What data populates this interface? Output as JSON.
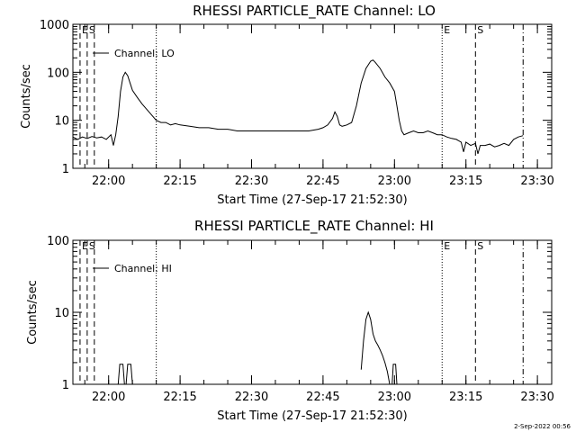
{
  "footer_date": "2-Sep-2022 00:56",
  "chart_data": [
    {
      "type": "line",
      "title": "RHESSI PARTICLE_RATE Channel: LO",
      "xlabel": "Start Time (27-Sep-17 21:52:30)",
      "ylabel": "Counts/sec",
      "yscale": "log",
      "ylim": [
        1,
        1000
      ],
      "xlim": [
        "21:52:30",
        "23:33:00"
      ],
      "x_ticks": [
        "22:00",
        "22:15",
        "22:30",
        "22:45",
        "23:00",
        "23:15",
        "23:30"
      ],
      "y_ticks": [
        "1",
        "10",
        "100",
        "1000"
      ],
      "legend": "Channel: LO",
      "markers": [
        {
          "label": "E",
          "time": "21:54:00",
          "style": "dashed"
        },
        {
          "label": "S",
          "time": "21:55:30",
          "style": "dashed"
        },
        {
          "label": "",
          "time": "21:57:00",
          "style": "dashed"
        },
        {
          "label": "",
          "time": "22:10:00",
          "style": "dotted"
        },
        {
          "label": "E",
          "time": "23:10:00",
          "style": "dotted"
        },
        {
          "label": "S",
          "time": "23:17:00",
          "style": "dashed"
        },
        {
          "label": "",
          "time": "23:27:00",
          "style": "dashdot"
        }
      ],
      "series": [
        {
          "points": [
            [
              "21:52:30",
              4.5
            ],
            [
              "21:53:30",
              4
            ],
            [
              "21:54:30",
              4.5
            ],
            [
              "21:55:30",
              4.2
            ],
            [
              "21:56:30",
              4.6
            ],
            [
              "21:57:30",
              4.3
            ],
            [
              "21:58:30",
              4.5
            ],
            [
              "21:59:30",
              4
            ],
            [
              "22:00:30",
              5
            ],
            [
              "22:01:00",
              3
            ],
            [
              "22:01:30",
              5
            ],
            [
              "22:02:00",
              12
            ],
            [
              "22:02:30",
              40
            ],
            [
              "22:03:00",
              80
            ],
            [
              "22:03:30",
              100
            ],
            [
              "22:04:00",
              85
            ],
            [
              "22:04:30",
              60
            ],
            [
              "22:05:00",
              42
            ],
            [
              "22:06:00",
              30
            ],
            [
              "22:07:00",
              22
            ],
            [
              "22:08:00",
              17
            ],
            [
              "22:09:00",
              13
            ],
            [
              "22:10:00",
              10
            ],
            [
              "22:11:00",
              9
            ],
            [
              "22:12:00",
              9
            ],
            [
              "22:13:00",
              8
            ],
            [
              "22:14:00",
              8.5
            ],
            [
              "22:15:00",
              8
            ],
            [
              "22:17:00",
              7.5
            ],
            [
              "22:19:00",
              7
            ],
            [
              "22:21:00",
              7
            ],
            [
              "22:23:00",
              6.5
            ],
            [
              "22:25:00",
              6.5
            ],
            [
              "22:27:00",
              6
            ],
            [
              "22:30:00",
              6
            ],
            [
              "22:33:00",
              6
            ],
            [
              "22:36:00",
              6
            ],
            [
              "22:39:00",
              6
            ],
            [
              "22:42:00",
              6
            ],
            [
              "22:44:00",
              6.5
            ],
            [
              "22:45:00",
              7
            ],
            [
              "22:46:00",
              8
            ],
            [
              "22:47:00",
              11
            ],
            [
              "22:47:30",
              15
            ],
            [
              "22:48:00",
              12
            ],
            [
              "22:48:30",
              8
            ],
            [
              "22:49:00",
              7.5
            ],
            [
              "22:50:00",
              8
            ],
            [
              "22:51:00",
              9
            ],
            [
              "22:52:00",
              20
            ],
            [
              "22:53:00",
              60
            ],
            [
              "22:54:00",
              120
            ],
            [
              "22:55:00",
              170
            ],
            [
              "22:55:30",
              180
            ],
            [
              "22:56:00",
              160
            ],
            [
              "22:57:00",
              120
            ],
            [
              "22:58:00",
              80
            ],
            [
              "22:59:00",
              60
            ],
            [
              "23:00:00",
              40
            ],
            [
              "23:00:30",
              20
            ],
            [
              "23:01:00",
              10
            ],
            [
              "23:01:30",
              6
            ],
            [
              "23:02:00",
              5
            ],
            [
              "23:03:00",
              5.5
            ],
            [
              "23:04:00",
              6
            ],
            [
              "23:05:00",
              5.5
            ],
            [
              "23:06:00",
              5.5
            ],
            [
              "23:07:00",
              6
            ],
            [
              "23:08:00",
              5.5
            ],
            [
              "23:09:00",
              5
            ],
            [
              "23:10:00",
              5
            ],
            [
              "23:11:00",
              4.5
            ],
            [
              "23:12:00",
              4.2
            ],
            [
              "23:13:00",
              4
            ],
            [
              "23:14:00",
              3.5
            ],
            [
              "23:14:30",
              2.2
            ],
            [
              "23:15:00",
              3.5
            ],
            [
              "23:16:00",
              3
            ],
            [
              "23:17:00",
              3.3
            ],
            [
              "23:17:30",
              2
            ],
            [
              "23:18:00",
              3
            ],
            [
              "23:19:00",
              3
            ],
            [
              "23:20:00",
              3.2
            ],
            [
              "23:21:00",
              2.8
            ],
            [
              "23:22:00",
              3
            ],
            [
              "23:23:00",
              3.3
            ],
            [
              "23:24:00",
              3
            ],
            [
              "23:25:00",
              4
            ],
            [
              "23:26:00",
              4.5
            ],
            [
              "23:27:00",
              4.8
            ]
          ]
        }
      ]
    },
    {
      "type": "line",
      "title": "RHESSI PARTICLE_RATE Channel: HI",
      "xlabel": "Start Time (27-Sep-17 21:52:30)",
      "ylabel": "Counts/sec",
      "yscale": "log",
      "ylim": [
        1,
        100
      ],
      "xlim": [
        "21:52:30",
        "23:33:00"
      ],
      "x_ticks": [
        "22:00",
        "22:15",
        "22:30",
        "22:45",
        "23:00",
        "23:15",
        "23:30"
      ],
      "y_ticks": [
        "1",
        "10",
        "100"
      ],
      "legend": "Channel: HI",
      "markers": [
        {
          "label": "E",
          "time": "21:54:00",
          "style": "dashed"
        },
        {
          "label": "S",
          "time": "21:55:30",
          "style": "dashed"
        },
        {
          "label": "",
          "time": "21:57:00",
          "style": "dashed"
        },
        {
          "label": "",
          "time": "22:10:00",
          "style": "dotted"
        },
        {
          "label": "E",
          "time": "23:10:00",
          "style": "dotted"
        },
        {
          "label": "S",
          "time": "23:17:00",
          "style": "dashed"
        },
        {
          "label": "",
          "time": "23:27:00",
          "style": "dashdot"
        }
      ],
      "series": [
        {
          "segments": [
            [
              [
                "22:02:00",
                1
              ],
              [
                "22:02:20",
                1.9
              ],
              [
                "22:03:00",
                1.9
              ],
              [
                "22:03:20",
                1
              ]
            ],
            [
              [
                "22:03:40",
                1
              ],
              [
                "22:04:00",
                1.9
              ],
              [
                "22:04:40",
                1.9
              ],
              [
                "22:05:00",
                1
              ]
            ],
            [
              [
                "22:53:00",
                1.6
              ],
              [
                "22:53:30",
                4
              ],
              [
                "22:54:00",
                8
              ],
              [
                "22:54:30",
                10
              ],
              [
                "22:55:00",
                8
              ],
              [
                "22:55:30",
                5
              ],
              [
                "22:56:00",
                4
              ],
              [
                "22:56:30",
                3.5
              ],
              [
                "22:57:00",
                3
              ],
              [
                "22:57:30",
                2.5
              ],
              [
                "22:58:00",
                2
              ],
              [
                "22:58:30",
                1.5
              ],
              [
                "22:59:00",
                1
              ]
            ],
            [
              [
                "22:59:30",
                1
              ],
              [
                "22:59:45",
                1.9
              ],
              [
                "23:00:15",
                1.9
              ],
              [
                "23:00:30",
                1
              ]
            ]
          ]
        }
      ]
    }
  ]
}
